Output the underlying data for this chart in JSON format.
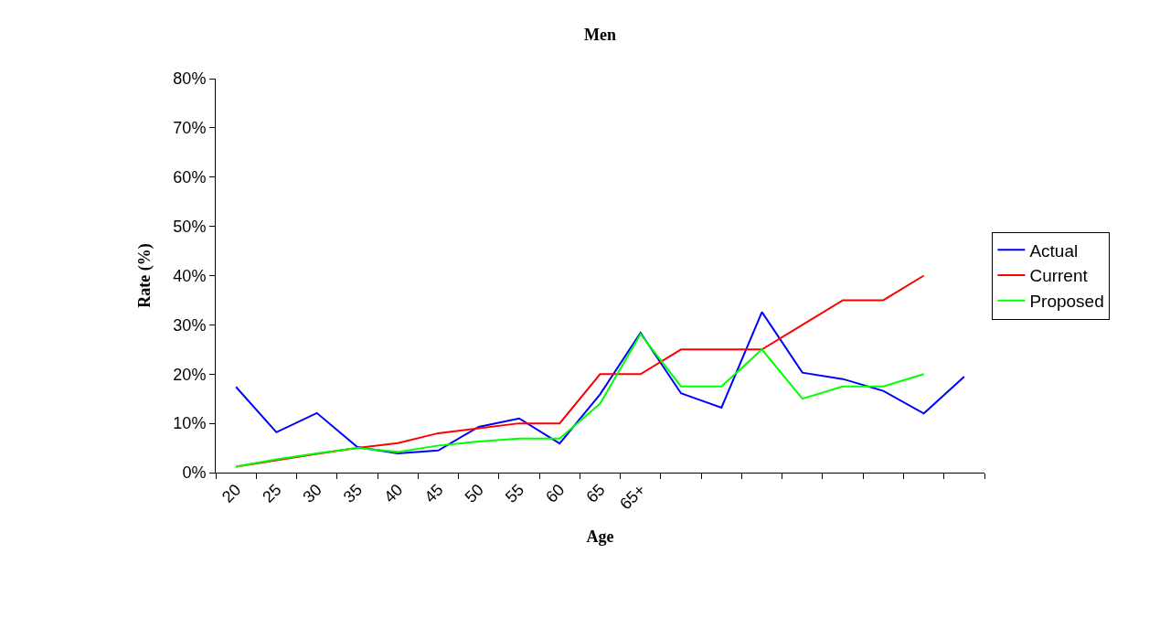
{
  "chart_data": {
    "type": "line",
    "title": "Men",
    "xlabel": "Age",
    "ylabel": "Rate (%)",
    "categories": [
      "20",
      "25",
      "30",
      "35",
      "40",
      "45",
      "50",
      "55",
      "60",
      "65",
      "65+",
      null,
      null,
      null,
      null,
      null,
      null,
      null,
      null
    ],
    "series": [
      {
        "name": "Actual",
        "color": "#0000ff",
        "values": [
          17.4,
          8.2,
          12.1,
          5.2,
          3.9,
          4.5,
          9.3,
          11.0,
          5.9,
          15.9,
          28.4,
          16.1,
          13.2,
          32.6,
          20.3,
          19.0,
          16.6,
          12.0,
          19.5
        ]
      },
      {
        "name": "Current",
        "color": "#ff0000",
        "values": [
          1.2,
          2.5,
          3.8,
          5.0,
          6.0,
          8.0,
          9.0,
          10.0,
          10.0,
          20.0,
          20.0,
          25.0,
          25.0,
          25.0,
          30.0,
          35.0,
          35.0,
          40.0,
          null
        ]
      },
      {
        "name": "Proposed",
        "color": "#00ff00",
        "values": [
          1.2,
          2.7,
          3.9,
          5.0,
          4.2,
          5.5,
          6.3,
          6.9,
          6.9,
          14.0,
          28.1,
          17.5,
          17.5,
          25.0,
          15.0,
          17.5,
          17.5,
          20.0,
          null
        ]
      }
    ],
    "ylim": [
      0,
      80
    ],
    "yticks": [
      {
        "value": 0,
        "label": "0%"
      },
      {
        "value": 10,
        "label": "10%"
      },
      {
        "value": 20,
        "label": "20%"
      },
      {
        "value": 30,
        "label": "30%"
      },
      {
        "value": 40,
        "label": "40%"
      },
      {
        "value": 50,
        "label": "50%"
      },
      {
        "value": 60,
        "label": "60%"
      },
      {
        "value": 70,
        "label": "70%"
      },
      {
        "value": 80,
        "label": "80%"
      }
    ],
    "legend": "right",
    "marker": "none",
    "line_style": "solid"
  }
}
